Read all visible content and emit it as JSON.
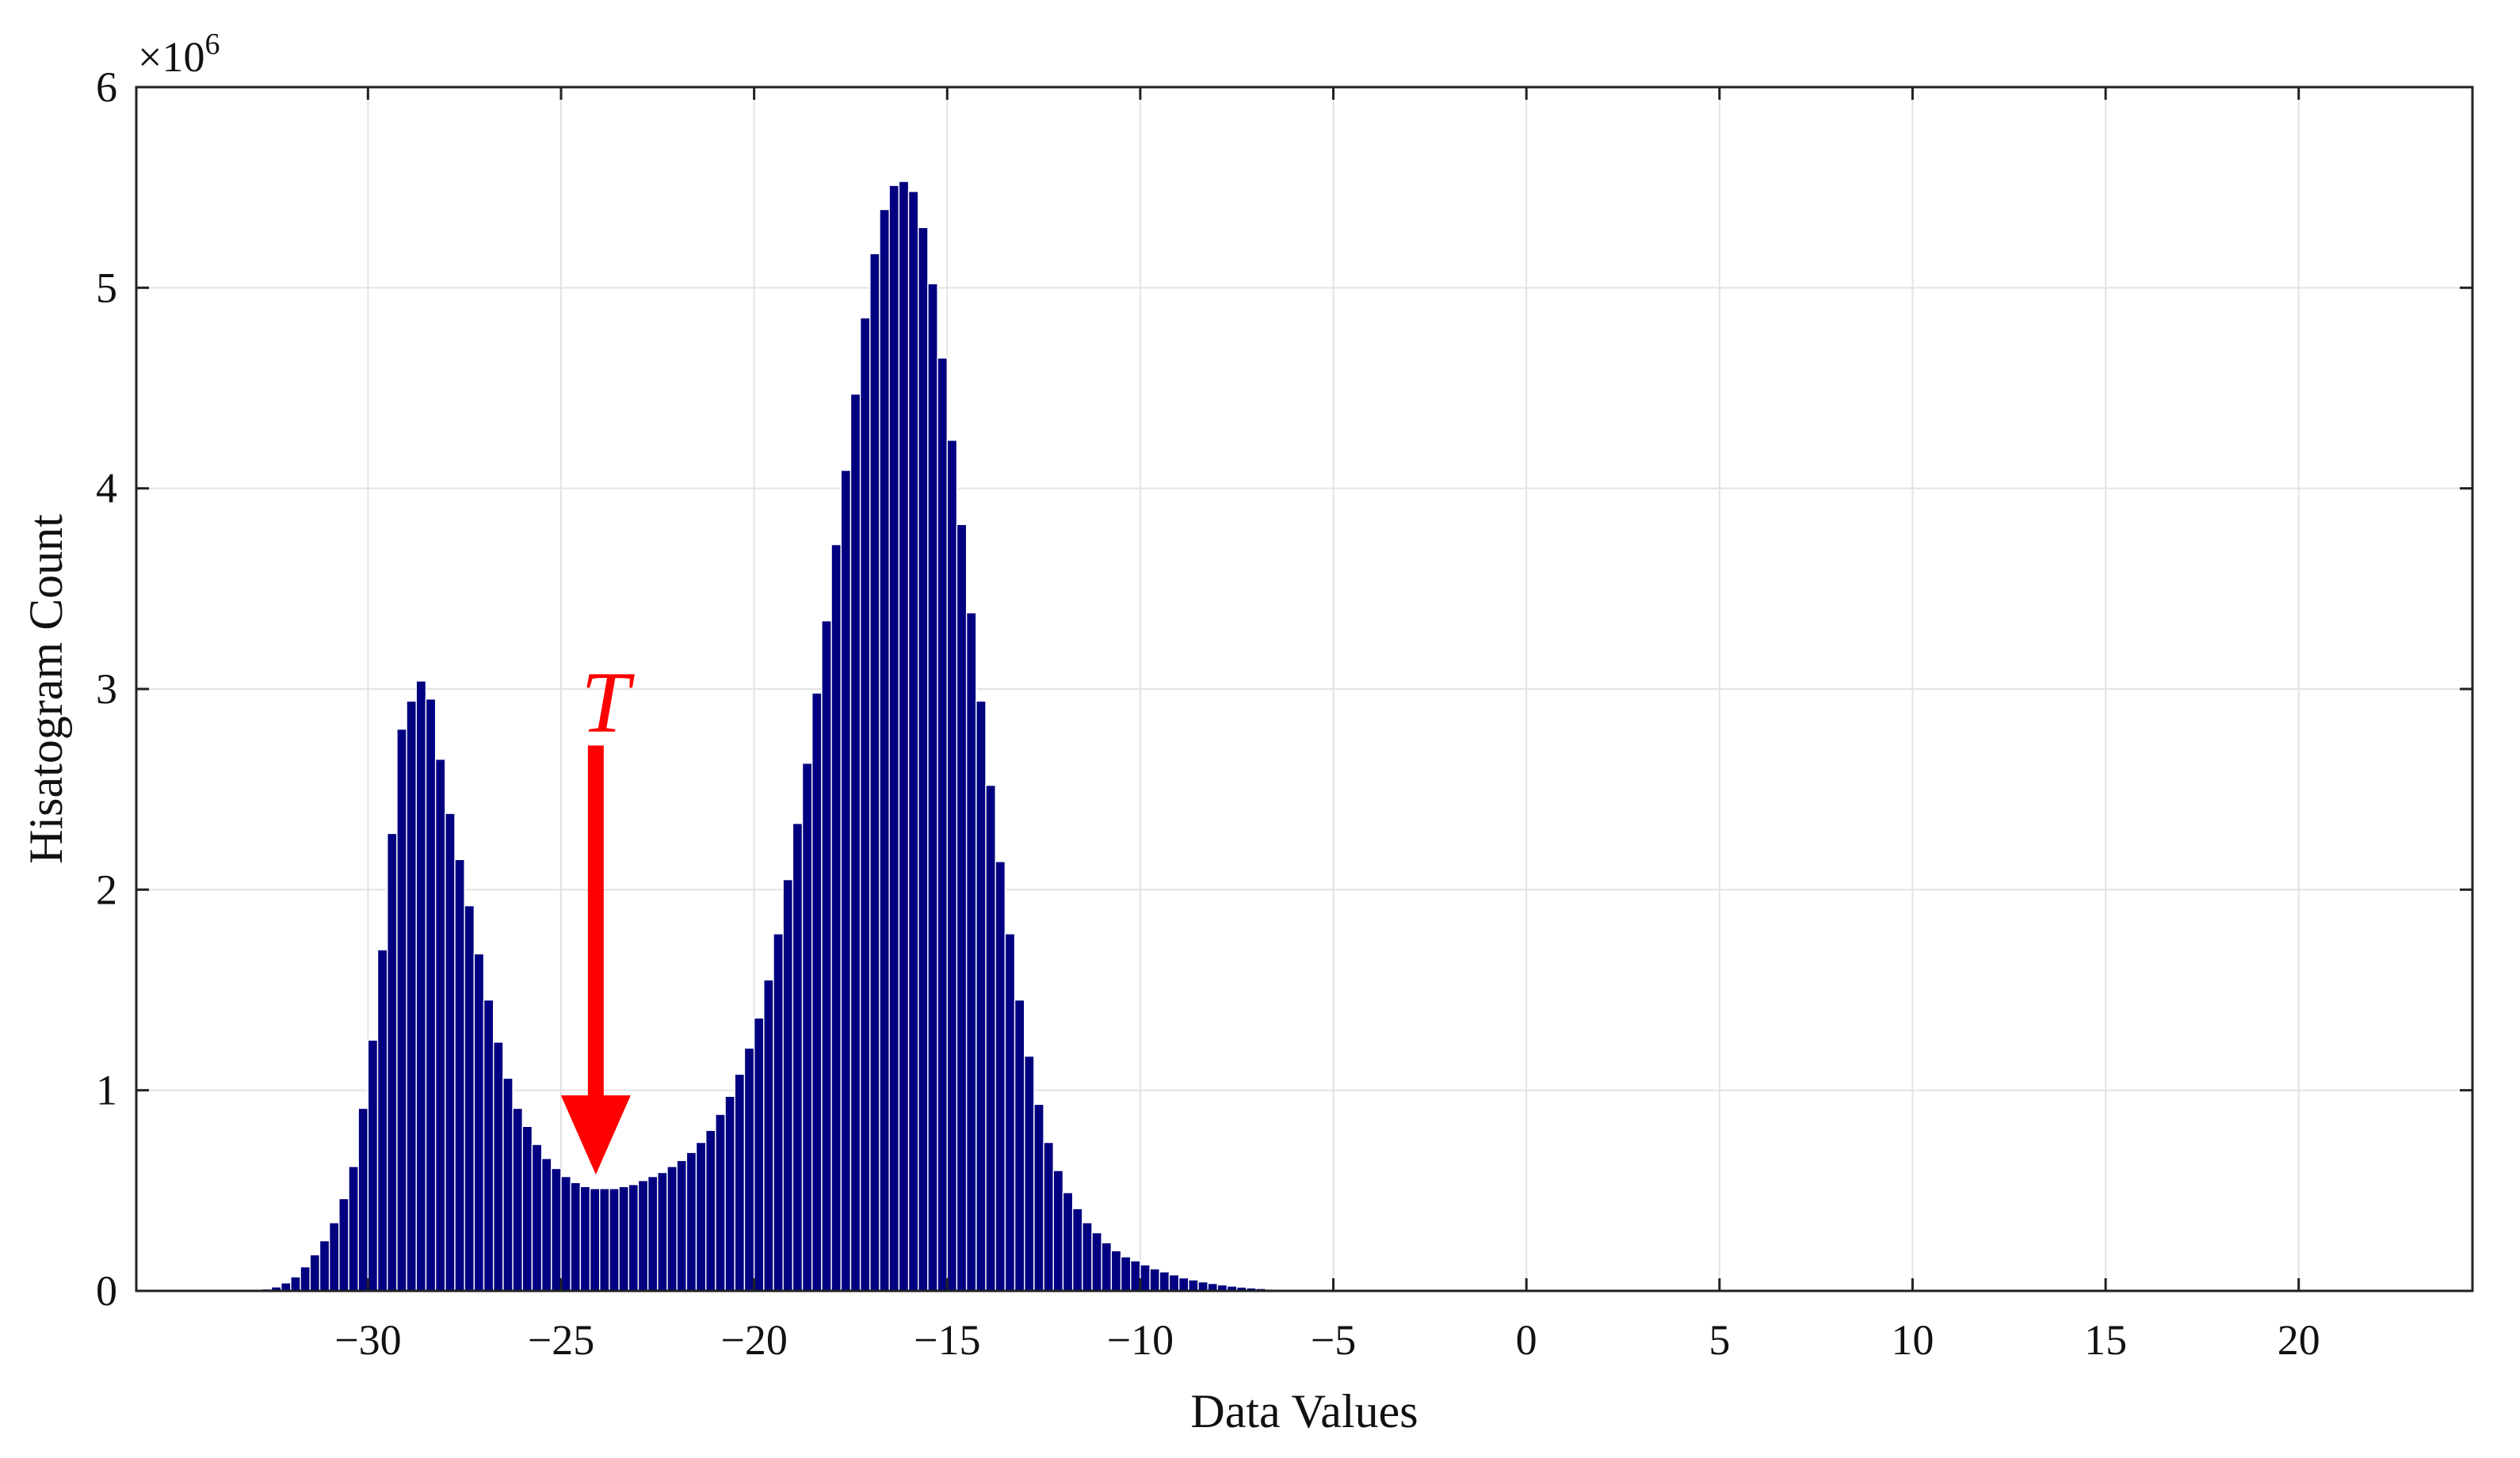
{
  "chart_data": {
    "type": "bar",
    "xlabel": "Data Values",
    "ylabel": "Hisatogram Count",
    "y_multiplier": "×10",
    "y_multiplier_exp": "6",
    "xlim": [
      -36,
      24.5
    ],
    "ylim": [
      0,
      6
    ],
    "grid": true,
    "bar_color": "#000080",
    "bar_edge_color": "#ffffff",
    "x_ticks": [
      {
        "value": -30,
        "label": "−30"
      },
      {
        "value": -25,
        "label": "−25"
      },
      {
        "value": -20,
        "label": "−20"
      },
      {
        "value": -15,
        "label": "−15"
      },
      {
        "value": -10,
        "label": "−10"
      },
      {
        "value": -5,
        "label": "−5"
      },
      {
        "value": 0,
        "label": "0"
      },
      {
        "value": 5,
        "label": "5"
      },
      {
        "value": 10,
        "label": "10"
      },
      {
        "value": 15,
        "label": "15"
      },
      {
        "value": 20,
        "label": "20"
      }
    ],
    "y_ticks": [
      {
        "value": 0,
        "label": "0"
      },
      {
        "value": 1,
        "label": "1"
      },
      {
        "value": 2,
        "label": "2"
      },
      {
        "value": 3,
        "label": "3"
      },
      {
        "value": 4,
        "label": "4"
      },
      {
        "value": 5,
        "label": "5"
      },
      {
        "value": 6,
        "label": "6"
      }
    ],
    "bin_start": -32.75,
    "bin_width": 0.25,
    "values": [
      0.01,
      0.02,
      0.04,
      0.07,
      0.12,
      0.18,
      0.25,
      0.34,
      0.46,
      0.62,
      0.91,
      1.25,
      1.7,
      2.28,
      2.8,
      2.94,
      3.04,
      2.95,
      2.65,
      2.38,
      2.15,
      1.92,
      1.68,
      1.45,
      1.24,
      1.06,
      0.91,
      0.82,
      0.73,
      0.66,
      0.61,
      0.57,
      0.54,
      0.52,
      0.51,
      0.51,
      0.51,
      0.52,
      0.53,
      0.55,
      0.57,
      0.59,
      0.62,
      0.65,
      0.69,
      0.74,
      0.8,
      0.88,
      0.97,
      1.08,
      1.21,
      1.36,
      1.55,
      1.78,
      2.05,
      2.33,
      2.63,
      2.98,
      3.34,
      3.72,
      4.09,
      4.47,
      4.85,
      5.17,
      5.39,
      5.51,
      5.53,
      5.48,
      5.3,
      5.02,
      4.65,
      4.24,
      3.82,
      3.38,
      2.94,
      2.52,
      2.14,
      1.78,
      1.45,
      1.17,
      0.93,
      0.74,
      0.6,
      0.49,
      0.41,
      0.34,
      0.29,
      0.24,
      0.2,
      0.17,
      0.15,
      0.13,
      0.11,
      0.095,
      0.08,
      0.065,
      0.055,
      0.045,
      0.037,
      0.03,
      0.024,
      0.019,
      0.015,
      0.012,
      0.009,
      0.007,
      0.005,
      0.004,
      0.003,
      0.002,
      0.0015,
      0.001,
      0.001,
      0.0005
    ],
    "annotation": {
      "label": "T",
      "x": -24.1,
      "color": "#ff0000",
      "arrow_from": 2.75,
      "arrow_to": 0.58
    }
  }
}
